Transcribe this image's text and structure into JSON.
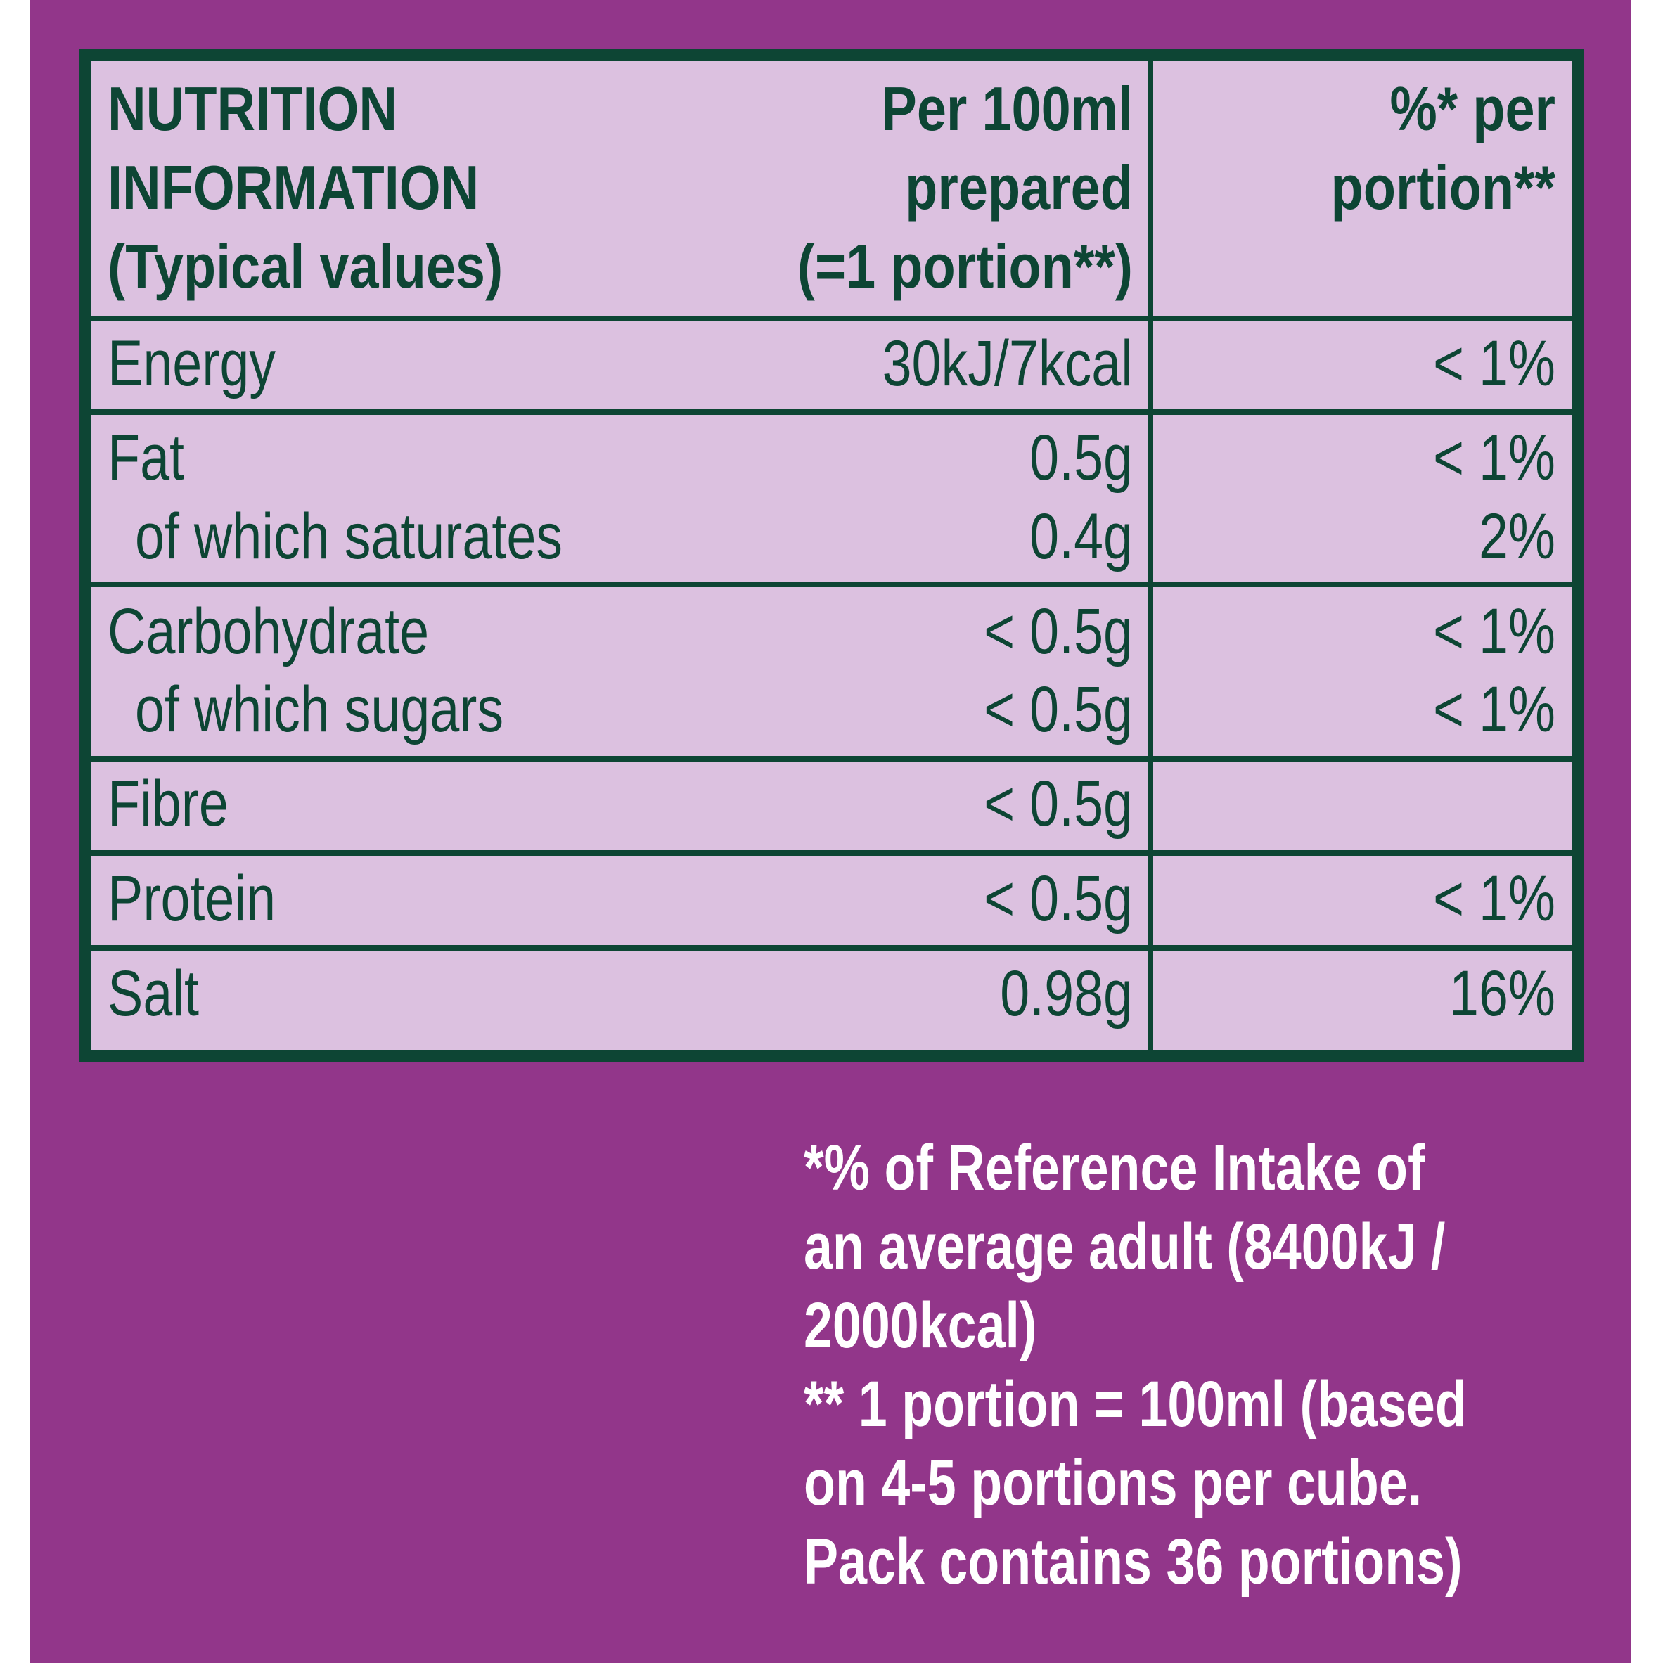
{
  "colors": {
    "background": "#92368a",
    "table_fill": "#dcc1e0",
    "table_text_and_border": "#0d4534",
    "footnote_text": "#ffffff"
  },
  "table": {
    "header": {
      "col1": [
        "NUTRITION",
        "INFORMATION",
        "(Typical values)"
      ],
      "col2": [
        "Per 100ml",
        "prepared",
        "(=1 portion**)"
      ],
      "col3": [
        "%* per",
        "portion**"
      ]
    },
    "rows": [
      {
        "label": "Energy",
        "per100": "30kJ/7kcal",
        "pct": "< 1%"
      },
      {
        "label": "Fat",
        "per100": "0.5g",
        "pct": "< 1%"
      },
      {
        "label": "of which saturates",
        "per100": "0.4g",
        "pct": "2%"
      },
      {
        "label": "Carbohydrate",
        "per100": "< 0.5g",
        "pct": "< 1%"
      },
      {
        "label": "of which sugars",
        "per100": "< 0.5g",
        "pct": "< 1%"
      },
      {
        "label": "Fibre",
        "per100": "< 0.5g",
        "pct": ""
      },
      {
        "label": "Protein",
        "per100": "< 0.5g",
        "pct": "< 1%"
      },
      {
        "label": "Salt",
        "per100": "0.98g",
        "pct": "16%"
      }
    ]
  },
  "footnote": [
    "*% of Reference Intake of",
    "an average adult (8400kJ /",
    "2000kcal)",
    "** 1 portion = 100ml (based",
    "on 4-5 portions per cube.",
    "Pack contains 36 portions)"
  ]
}
